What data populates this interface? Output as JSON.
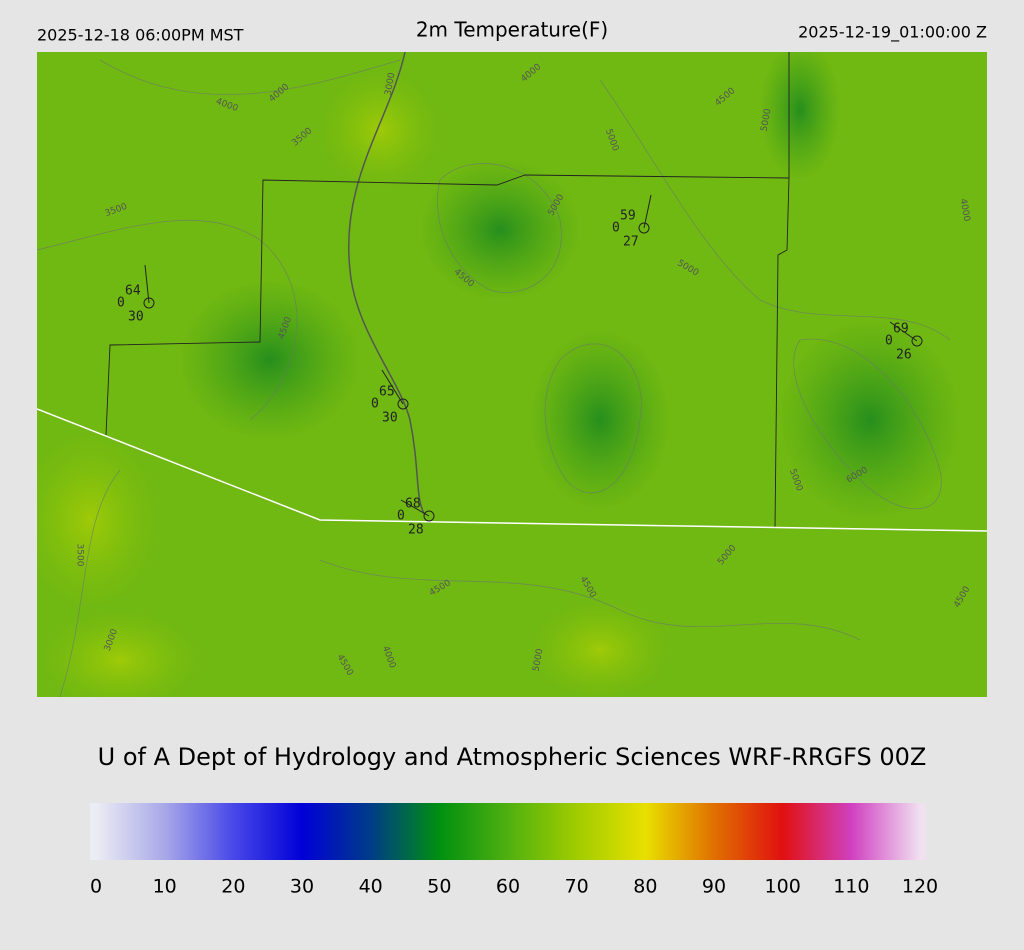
{
  "header": {
    "left": "2025-12-18 06:00PM MST",
    "title": "2m Temperature(F)",
    "right": "2025-12-19_01:00:00 Z"
  },
  "stations": [
    {
      "temp": 64,
      "zero": 0,
      "dew": 30
    },
    {
      "temp": 59,
      "zero": 0,
      "dew": 27
    },
    {
      "temp": 69,
      "zero": 0,
      "dew": 26
    },
    {
      "temp": 65,
      "zero": 0,
      "dew": 30
    },
    {
      "temp": 68,
      "zero": 0,
      "dew": 28
    }
  ],
  "contour_labels": [
    4000,
    4000,
    4000,
    3000,
    3500,
    3500,
    3500,
    4500,
    4500,
    4500,
    4500,
    4500,
    4500,
    5000,
    5000,
    5000,
    5000,
    5000,
    5000,
    3000,
    4000,
    4500,
    6000,
    5000,
    4000
  ],
  "footer": "U of A Dept of Hydrology and Atmospheric Sciences WRF-RRGFS 00Z",
  "colorbar": {
    "ticks": [
      0,
      10,
      20,
      30,
      40,
      50,
      60,
      70,
      80,
      90,
      100,
      110,
      120
    ],
    "colors": [
      "#ececf4",
      "#a8a8e8",
      "#4848e8",
      "#0000d8",
      "#003c88",
      "#009010",
      "#50b010",
      "#a0cc00",
      "#e8e000",
      "#e07000",
      "#e01010",
      "#d040c0",
      "#f0e0f0"
    ]
  }
}
